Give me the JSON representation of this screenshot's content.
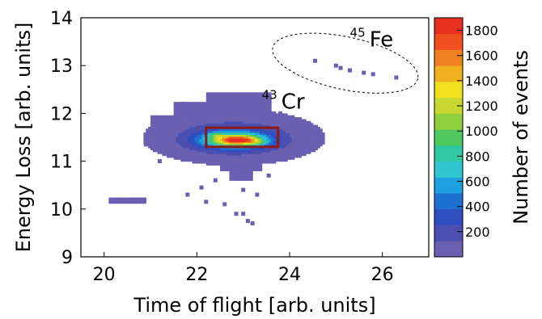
{
  "chart_data": {
    "type": "heatmap",
    "xlabel": "Time of flight [arb. units]",
    "ylabel": "Energy Loss [arb. units]",
    "colorbar_label": "Number of events",
    "xlim": [
      19.5,
      27
    ],
    "ylim": [
      9,
      14
    ],
    "x_ticks": [
      20,
      22,
      24,
      26
    ],
    "y_ticks": [
      9,
      10,
      11,
      12,
      13,
      14
    ],
    "colorbar_range": [
      0,
      1900
    ],
    "colorbar_ticks": [
      200,
      400,
      600,
      800,
      1000,
      1200,
      1400,
      1600,
      1800
    ],
    "colorscale": [
      "#6a5fb0",
      "#4a4fb0",
      "#2f4fc0",
      "#1f6fd0",
      "#1fa0e0",
      "#2fc8d0",
      "#2fc8a0",
      "#4fc860",
      "#8fd040",
      "#c8d830",
      "#f0e020",
      "#f0b020",
      "#f08020",
      "#f05020",
      "#e83020"
    ],
    "annotations": [
      {
        "label": "45",
        "text": "Fe",
        "x": 25.3,
        "y": 13.4
      },
      {
        "label": "43",
        "text": "Cr",
        "x": 23.4,
        "y": 12.1
      }
    ],
    "regions": [
      {
        "shape": "rectangle",
        "x": [
          22.2,
          23.75
        ],
        "y": [
          11.3,
          11.7
        ],
        "color": "#8b1a1a"
      },
      {
        "shape": "dashed-ellipse",
        "center": [
          25.2,
          13.05
        ],
        "radius": [
          1.6,
          0.55
        ]
      }
    ],
    "density": [
      {
        "x": 22.8,
        "y": 11.5,
        "sx": 0.8,
        "sy": 0.24,
        "amp": 300
      },
      {
        "x": 22.8,
        "y": 11.45,
        "sx": 0.5,
        "sy": 0.12,
        "amp": 900
      },
      {
        "x": 22.9,
        "y": 11.45,
        "sx": 0.3,
        "sy": 0.06,
        "amp": 900
      },
      {
        "x": 22.4,
        "y": 11.55,
        "sx": 0.12,
        "sy": 0.04,
        "amp": 350
      },
      {
        "x": 23.3,
        "y": 11.4,
        "sx": 0.14,
        "sy": 0.04,
        "amp": 250
      }
    ],
    "sparse_regions": [
      {
        "x": 21.5,
        "y": 11.95,
        "w": 0.7,
        "h": 0.3
      },
      {
        "x": 22.2,
        "y": 12.0,
        "w": 1.4,
        "h": 0.45
      },
      {
        "x": 21.0,
        "y": 11.75,
        "w": 1.2,
        "h": 0.2
      },
      {
        "x": 23.7,
        "y": 11.2,
        "w": 0.5,
        "h": 0.45
      },
      {
        "x": 22.5,
        "y": 10.8,
        "w": 0.9,
        "h": 0.4
      },
      {
        "x": 22.7,
        "y": 10.6,
        "w": 0.5,
        "h": 0.25
      },
      {
        "x": 20.1,
        "y": 10.1,
        "w": 0.8,
        "h": 0.15
      }
    ],
    "outlier_points": [
      [
        24.55,
        13.1
      ],
      [
        25.0,
        13.0
      ],
      [
        25.1,
        12.95
      ],
      [
        25.3,
        12.9
      ],
      [
        25.6,
        12.85
      ],
      [
        25.8,
        12.82
      ],
      [
        26.3,
        12.75
      ],
      [
        20.9,
        11.35
      ],
      [
        21.2,
        11.0
      ],
      [
        21.8,
        10.3
      ],
      [
        22.1,
        10.45
      ],
      [
        22.4,
        10.6
      ],
      [
        23.0,
        10.4
      ],
      [
        23.3,
        10.3
      ],
      [
        22.6,
        10.1
      ],
      [
        23.0,
        9.9
      ],
      [
        23.1,
        9.75
      ],
      [
        23.2,
        9.7
      ],
      [
        22.85,
        9.9
      ],
      [
        23.55,
        10.7
      ],
      [
        23.2,
        10.95
      ],
      [
        21.7,
        12.2
      ],
      [
        23.2,
        12.25
      ],
      [
        23.8,
        12.0
      ],
      [
        24.1,
        11.3
      ],
      [
        22.2,
        10.15
      ]
    ]
  }
}
